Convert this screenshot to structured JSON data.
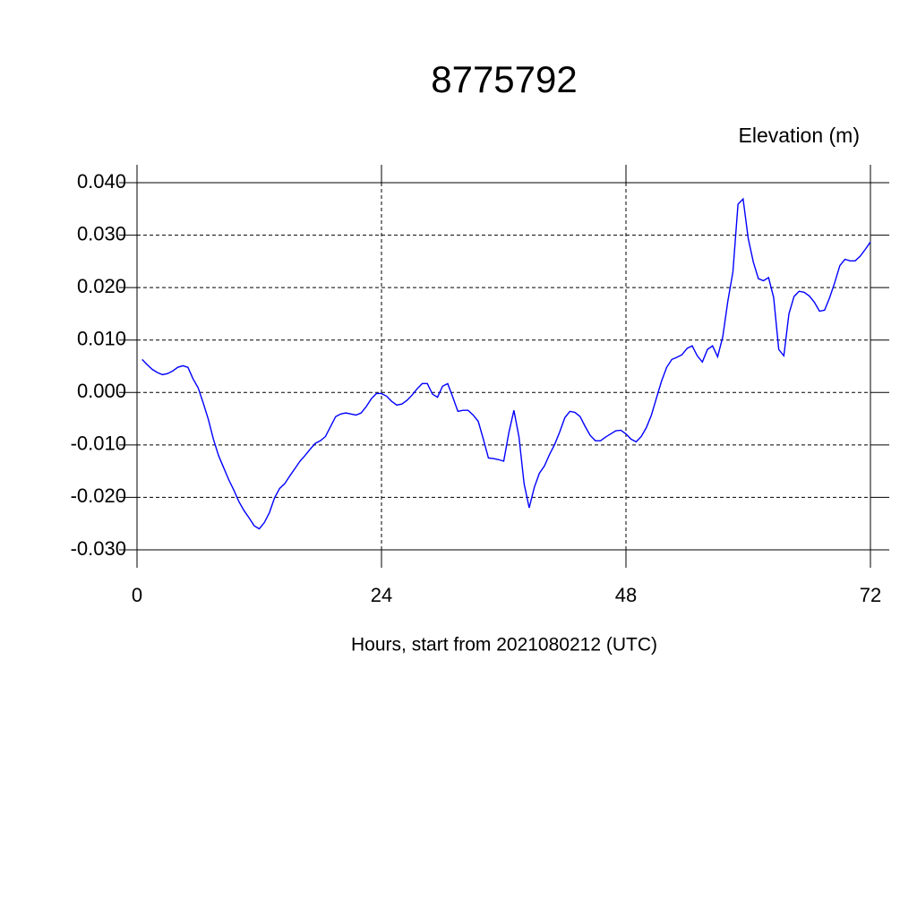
{
  "chart_data": {
    "type": "line",
    "title": "8775792",
    "subtitle": "Elevation (m)",
    "x_label": "Hours, start from 2021080212 (UTC)",
    "x": [
      0.5,
      1,
      1.5,
      2,
      2.5,
      3,
      3.5,
      4,
      4.5,
      5,
      5.5,
      6,
      6.5,
      7,
      7.5,
      8,
      8.5,
      9,
      9.5,
      10,
      10.5,
      11,
      11.5,
      12,
      12.5,
      13,
      13.5,
      14,
      14.5,
      15,
      15.5,
      16,
      16.5,
      17,
      17.5,
      18,
      18.5,
      19,
      19.5,
      20,
      20.5,
      21,
      21.5,
      22,
      22.5,
      23,
      23.5,
      24,
      24.5,
      25,
      25.5,
      26,
      26.5,
      27,
      27.5,
      28,
      28.5,
      29,
      29.5,
      30,
      30.5,
      31,
      31.5,
      32,
      32.5,
      33,
      33.5,
      34,
      34.5,
      35,
      35.5,
      36,
      36.5,
      37,
      37.5,
      38,
      38.5,
      39,
      39.5,
      40,
      40.5,
      41,
      41.5,
      42,
      42.5,
      43,
      43.5,
      44,
      44.5,
      45,
      45.5,
      46,
      46.5,
      47,
      47.5,
      48,
      48.5,
      49,
      49.5,
      50,
      50.5,
      51,
      51.5,
      52,
      52.5,
      53,
      53.5,
      54,
      54.5,
      55,
      55.5,
      56,
      56.5,
      57,
      57.5,
      58,
      58.5,
      59,
      59.5,
      60,
      60.5,
      61,
      61.5,
      62,
      62.5,
      63,
      63.5,
      64,
      64.5,
      65,
      65.5,
      66,
      66.5,
      67,
      67.5,
      68,
      68.5,
      69,
      69.5,
      70,
      70.5,
      71,
      71.5,
      72
    ],
    "series": [
      {
        "color": "#0000ff",
        "values": [
          0.0063,
          0.0053,
          0.0044,
          0.0038,
          0.0034,
          0.0036,
          0.0041,
          0.0048,
          0.0051,
          0.0048,
          0.0026,
          0.0009,
          -0.002,
          -0.0051,
          -0.0089,
          -0.012,
          -0.0143,
          -0.0166,
          -0.0186,
          -0.0208,
          -0.0225,
          -0.0239,
          -0.0254,
          -0.026,
          -0.0248,
          -0.0229,
          -0.0201,
          -0.0183,
          -0.0174,
          -0.0159,
          -0.0145,
          -0.0131,
          -0.012,
          -0.0108,
          -0.0097,
          -0.0092,
          -0.0084,
          -0.0065,
          -0.0046,
          -0.0041,
          -0.0039,
          -0.0041,
          -0.0043,
          -0.0039,
          -0.0027,
          -0.0012,
          -0.0002,
          -0.0002,
          -0.0007,
          -0.0017,
          -0.0024,
          -0.0022,
          -0.0015,
          -0.0005,
          0.0007,
          0.0017,
          0.0017,
          -0.0003,
          -0.0009,
          0.0012,
          0.0017,
          -0.0009,
          -0.0036,
          -0.0034,
          -0.0034,
          -0.0043,
          -0.0055,
          -0.0089,
          -0.0125,
          -0.0126,
          -0.0128,
          -0.0131,
          -0.0077,
          -0.0034,
          -0.0085,
          -0.0174,
          -0.022,
          -0.0181,
          -0.0154,
          -0.014,
          -0.0118,
          -0.0099,
          -0.0075,
          -0.0048,
          -0.0036,
          -0.0038,
          -0.0046,
          -0.0065,
          -0.0082,
          -0.0092,
          -0.0092,
          -0.0085,
          -0.0079,
          -0.0073,
          -0.0072,
          -0.0079,
          -0.0089,
          -0.0094,
          -0.0084,
          -0.0067,
          -0.0043,
          -0.001,
          0.0022,
          0.0048,
          0.0063,
          0.0067,
          0.0072,
          0.0084,
          0.0089,
          0.007,
          0.0058,
          0.0082,
          0.0089,
          0.0068,
          0.0106,
          0.0174,
          0.023,
          0.0359,
          0.0369,
          0.0294,
          0.0249,
          0.0217,
          0.0213,
          0.0219,
          0.0181,
          0.0082,
          0.007,
          0.015,
          0.0183,
          0.0193,
          0.0191,
          0.0184,
          0.0172,
          0.0155,
          0.0157,
          0.0181,
          0.021,
          0.0242,
          0.0254,
          0.0251,
          0.0251,
          0.026,
          0.0273,
          0.0287
        ]
      }
    ],
    "xlim": [
      0,
      72
    ],
    "xticks": [
      0,
      24,
      48,
      72
    ],
    "ylim": [
      -0.03,
      0.04
    ],
    "yticks": [
      {
        "value": 0.04,
        "label": "0.040"
      },
      {
        "value": 0.03,
        "label": "0.030"
      },
      {
        "value": 0.02,
        "label": "0.020"
      },
      {
        "value": 0.01,
        "label": "0.010"
      },
      {
        "value": 0,
        "label": "0.000"
      },
      {
        "value": -0.01,
        "label": "-0.010"
      },
      {
        "value": -0.02,
        "label": "-0.020"
      },
      {
        "value": -0.03,
        "label": "-0.030"
      }
    ],
    "grid": true
  }
}
